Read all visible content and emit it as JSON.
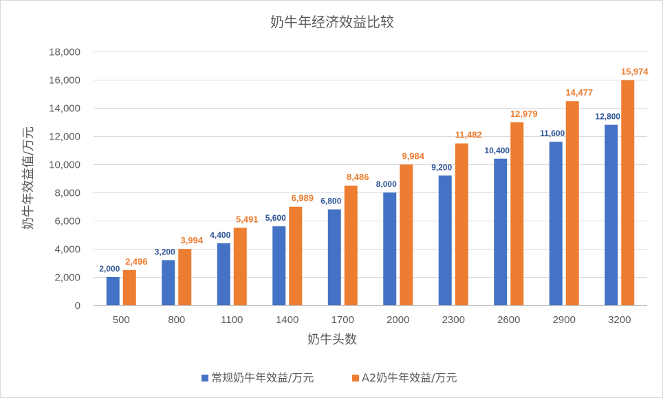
{
  "chart_data": {
    "type": "bar",
    "title": "奶牛年经济效益比较",
    "xlabel": "奶牛头数",
    "ylabel": "奶牛年效益值/万元",
    "categories": [
      "500",
      "800",
      "1100",
      "1400",
      "1700",
      "2000",
      "2300",
      "2600",
      "2900",
      "3200"
    ],
    "series": [
      {
        "name": "常规奶牛年效益/万元",
        "color": "#4472c4",
        "values": [
          2000,
          3200,
          4400,
          5600,
          6800,
          8000,
          9200,
          10400,
          11600,
          12800
        ],
        "labels": [
          "2,000",
          "3,200",
          "4,400",
          "5,600",
          "6,800",
          "8,000",
          "9,200",
          "10,400",
          "11,600",
          "12,800"
        ]
      },
      {
        "name": "A2奶牛年效益/万元",
        "color": "#ed7d31",
        "values": [
          2496,
          3994,
          5491,
          6989,
          8486,
          9984,
          11482,
          12979,
          14477,
          15974
        ],
        "labels": [
          "2,496",
          "3,994",
          "5,491",
          "6,989",
          "8,486",
          "9,984",
          "11,482",
          "12,979",
          "14,477",
          "15,974"
        ]
      }
    ],
    "ylim": [
      0,
      18000
    ],
    "yticks": [
      0,
      2000,
      4000,
      6000,
      8000,
      10000,
      12000,
      14000,
      16000,
      18000
    ],
    "ytick_labels": [
      "0",
      "2,000",
      "4,000",
      "6,000",
      "8,000",
      "10,000",
      "12,000",
      "14,000",
      "16,000",
      "18,000"
    ],
    "grid": true,
    "legend_position": "bottom"
  }
}
